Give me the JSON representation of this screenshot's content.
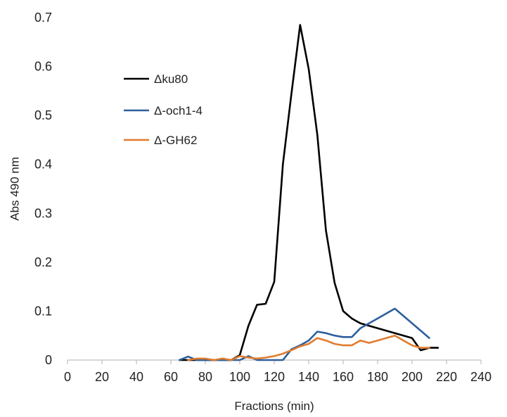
{
  "chart_data": {
    "type": "line",
    "title": "",
    "xlabel": "Fractions (min)",
    "ylabel": "Abs 490 nm",
    "xlim": [
      0,
      240
    ],
    "ylim": [
      0,
      0.7
    ],
    "xticks": [
      "0",
      "20",
      "40",
      "60",
      "80",
      "100",
      "120",
      "140",
      "160",
      "180",
      "200",
      "220",
      "240"
    ],
    "yticks": [
      "0",
      "0.1",
      "0.2",
      "0.3",
      "0.4",
      "0.5",
      "0.6",
      "0.7"
    ],
    "grid": false,
    "legend_position": "top-left",
    "series": [
      {
        "name": "Δku80",
        "color": "#000000",
        "points": [
          [
            65,
            0
          ],
          [
            70,
            0
          ],
          [
            75,
            0
          ],
          [
            80,
            0
          ],
          [
            85,
            0
          ],
          [
            90,
            0
          ],
          [
            95,
            0
          ],
          [
            100,
            0.01
          ],
          [
            105,
            0.07
          ],
          [
            110,
            0.113
          ],
          [
            115,
            0.115
          ],
          [
            120,
            0.16
          ],
          [
            125,
            0.4
          ],
          [
            130,
            0.545
          ],
          [
            135,
            0.685
          ],
          [
            140,
            0.595
          ],
          [
            145,
            0.46
          ],
          [
            150,
            0.265
          ],
          [
            155,
            0.158
          ],
          [
            160,
            0.1
          ],
          [
            165,
            0.085
          ],
          [
            170,
            0.075
          ],
          [
            180,
            0.065
          ],
          [
            190,
            0.055
          ],
          [
            200,
            0.045
          ],
          [
            205,
            0.02
          ],
          [
            210,
            0.025
          ],
          [
            215,
            0.025
          ]
        ]
      },
      {
        "name": "Δ-och1-4",
        "color": "#2e5f9c",
        "points": [
          [
            65,
            0
          ],
          [
            70,
            0.007
          ],
          [
            75,
            0
          ],
          [
            80,
            0
          ],
          [
            85,
            0
          ],
          [
            90,
            0
          ],
          [
            95,
            0
          ],
          [
            100,
            0
          ],
          [
            105,
            0.008
          ],
          [
            110,
            0
          ],
          [
            115,
            0
          ],
          [
            120,
            0
          ],
          [
            125,
            0
          ],
          [
            130,
            0.022
          ],
          [
            135,
            0.03
          ],
          [
            140,
            0.04
          ],
          [
            145,
            0.058
          ],
          [
            150,
            0.055
          ],
          [
            155,
            0.05
          ],
          [
            160,
            0.047
          ],
          [
            165,
            0.047
          ],
          [
            170,
            0.065
          ],
          [
            180,
            0.085
          ],
          [
            190,
            0.105
          ],
          [
            200,
            0.075
          ],
          [
            205,
            0.06
          ],
          [
            210,
            0.045
          ]
        ]
      },
      {
        "name": "Δ-GH62",
        "color": "#e07b2e",
        "points": [
          [
            70,
            0
          ],
          [
            75,
            0.003
          ],
          [
            80,
            0.003
          ],
          [
            85,
            0
          ],
          [
            90,
            0.003
          ],
          [
            95,
            0
          ],
          [
            100,
            0.008
          ],
          [
            105,
            0.005
          ],
          [
            110,
            0.003
          ],
          [
            115,
            0.005
          ],
          [
            120,
            0.008
          ],
          [
            125,
            0.013
          ],
          [
            130,
            0.02
          ],
          [
            135,
            0.028
          ],
          [
            140,
            0.033
          ],
          [
            145,
            0.045
          ],
          [
            150,
            0.04
          ],
          [
            155,
            0.033
          ],
          [
            160,
            0.03
          ],
          [
            165,
            0.03
          ],
          [
            170,
            0.04
          ],
          [
            175,
            0.035
          ],
          [
            180,
            0.04
          ],
          [
            190,
            0.05
          ],
          [
            200,
            0.03
          ],
          [
            205,
            0.025
          ],
          [
            210,
            0.025
          ]
        ]
      }
    ]
  }
}
